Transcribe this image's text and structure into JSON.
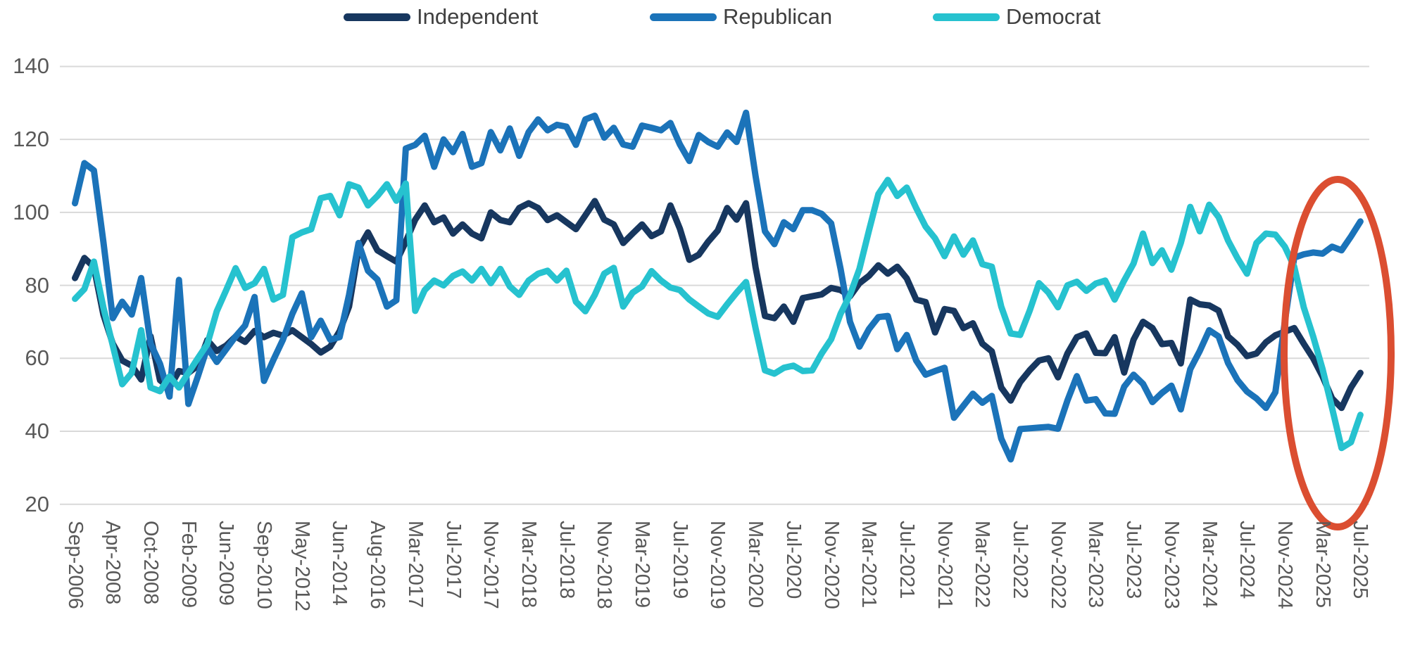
{
  "chart_data": {
    "type": "line",
    "title": "",
    "xlabel": "",
    "ylabel": "",
    "ylim": [
      20,
      140
    ],
    "yticks": [
      140,
      120,
      100,
      80,
      60,
      40,
      20
    ],
    "grid": "horizontal",
    "legend_position": "top",
    "x_tick_labels": [
      "Sep-2006",
      "Apr-2008",
      "Oct-2008",
      "Feb-2009",
      "Jun-2009",
      "Sep-2010",
      "May-2012",
      "Jun-2014",
      "Aug-2016",
      "Mar-2017",
      "Jul-2017",
      "Nov-2017",
      "Mar-2018",
      "Jul-2018",
      "Nov-2018",
      "Mar-2019",
      "Jul-2019",
      "Nov-2019",
      "Mar-2020",
      "Jul-2020",
      "Nov-2020",
      "Mar-2021",
      "Jul-2021",
      "Nov-2021",
      "Mar-2022",
      "Jul-2022",
      "Nov-2022",
      "Mar-2023",
      "Jul-2023",
      "Nov-2023",
      "Mar-2024",
      "Jul-2024",
      "Nov-2024",
      "Mar-2025",
      "Jul-2025"
    ],
    "label_every_n_points": 4,
    "series": [
      {
        "name": "Independent",
        "color": "#17375F",
        "values": [
          82,
          87.5,
          85,
          72,
          64,
          59.4,
          58,
          54.2,
          66,
          54,
          52,
          56.5,
          56,
          58,
          65,
          62,
          63.5,
          66,
          64.5,
          67.5,
          65.8,
          67,
          66.2,
          67.7,
          65.8,
          63.9,
          61.6,
          63.2,
          67.4,
          74.2,
          90,
          94.5,
          89.6,
          88,
          86.5,
          92,
          98,
          101.9,
          97.3,
          98.6,
          94.2,
          96.7,
          94.2,
          92.9,
          100,
          97.9,
          97.3,
          101.2,
          102.5,
          101.2,
          97.9,
          99.2,
          97.3,
          95.4,
          99.2,
          103.1,
          98,
          96.7,
          91.6,
          94.2,
          96.7,
          93.5,
          94.8,
          101.9,
          95.5,
          87,
          88.4,
          92,
          95,
          101.2,
          98,
          102.5,
          85,
          71.6,
          71,
          74.2,
          70,
          76.5,
          77,
          77.5,
          79.3,
          78.7,
          77,
          80.6,
          82.6,
          85.5,
          83.2,
          85.1,
          81.9,
          76.1,
          75.4,
          67.1,
          73.5,
          73,
          68.3,
          69.6,
          64,
          61.9,
          52,
          48.4,
          53.5,
          56.7,
          59.4,
          60,
          54.8,
          61.3,
          65.8,
          66.8,
          61.5,
          61.4,
          65.8,
          56.1,
          65.1,
          70,
          68.3,
          63.9,
          64.2,
          58.6,
          76.1,
          74.8,
          74.5,
          73.1,
          66,
          63.7,
          60.6,
          61.3,
          64.4,
          66.3,
          67.3,
          68.3,
          64,
          60,
          55,
          49,
          46.4,
          52,
          56
        ]
      },
      {
        "name": "Republican",
        "color": "#1B73B9",
        "values": [
          102.5,
          113.5,
          111.5,
          92,
          71,
          75.5,
          72,
          82,
          64,
          58.5,
          49.5,
          81.5,
          47.5,
          55,
          63,
          59,
          62.5,
          66,
          69,
          76.8,
          53.8,
          59.6,
          65.1,
          72.2,
          77.8,
          65.8,
          70.3,
          65.1,
          65.8,
          77.4,
          91.6,
          84,
          81.6,
          74.2,
          75.9,
          117.5,
          118.5,
          121,
          112.5,
          120,
          116.5,
          121.5,
          112.5,
          113.5,
          122,
          117,
          123,
          115.5,
          122,
          125.5,
          122.5,
          124,
          123.5,
          118.5,
          125.5,
          126.5,
          120.5,
          123.2,
          118.6,
          118,
          123.8,
          123.2,
          122.5,
          124.5,
          118.6,
          114.1,
          121.2,
          119.3,
          118,
          121.9,
          119.3,
          127.3,
          110,
          94.8,
          91.3,
          97.3,
          95.4,
          100.6,
          100.6,
          99.6,
          97,
          84.5,
          70,
          63.2,
          68,
          71.3,
          71.6,
          62.5,
          66.4,
          59.4,
          55.5,
          56.5,
          57.4,
          43.7,
          47,
          50.3,
          47.8,
          49.7,
          38,
          32.3,
          40.6,
          40.8,
          41,
          41.2,
          40.7,
          48.4,
          55.1,
          48.4,
          48.8,
          44.9,
          44.8,
          52.2,
          55.5,
          53,
          48,
          50.5,
          52.5,
          46,
          57,
          62,
          67.7,
          66,
          58.7,
          54,
          50.9,
          49,
          46.4,
          50.7,
          70,
          87.6,
          88.5,
          89,
          88.7,
          90.6,
          89.6,
          93.4,
          97.5
        ]
      },
      {
        "name": "Democrat",
        "color": "#26C2CF",
        "values": [
          76.3,
          79,
          86.5,
          74,
          63.5,
          52.9,
          56,
          67.7,
          52,
          51,
          55,
          52,
          56,
          60,
          63.9,
          72.9,
          78.7,
          84.7,
          79.3,
          80.6,
          84.5,
          76.1,
          77.4,
          93.2,
          94.5,
          95.4,
          103.9,
          104.5,
          99.2,
          107.7,
          106.8,
          101.9,
          104.5,
          107.7,
          103.2,
          107.9,
          73,
          78.7,
          81.3,
          80,
          82.6,
          83.8,
          81.3,
          84.5,
          80.6,
          84.5,
          79.7,
          77.4,
          81.3,
          83.2,
          84,
          81.3,
          84,
          75.5,
          72.9,
          77.4,
          83.2,
          84.8,
          74.2,
          78,
          79.7,
          83.9,
          81.3,
          79.4,
          78.7,
          76.1,
          74.2,
          72.3,
          71.4,
          74.8,
          78,
          80.9,
          68.3,
          56.7,
          55.8,
          57.4,
          58,
          56.5,
          56.7,
          61.3,
          65.2,
          72.2,
          77.4,
          84.5,
          95,
          105,
          108.9,
          104.5,
          106.8,
          101.2,
          96.1,
          92.9,
          88,
          93.4,
          88.4,
          92.3,
          85.8,
          85.1,
          74.2,
          66.8,
          66.4,
          73,
          80.6,
          78,
          74,
          80,
          81,
          78.5,
          80.5,
          81.3,
          76.1,
          81.3,
          86,
          94.2,
          86.1,
          89.6,
          84.3,
          91.6,
          101.5,
          94.8,
          102.1,
          98.7,
          92.3,
          87.4,
          83.2,
          91.6,
          94.2,
          93.9,
          90.6,
          85.1,
          74,
          66,
          57,
          46.4,
          35.4,
          37,
          44.5
        ]
      }
    ],
    "annotation": {
      "shape": "ellipse",
      "color": "#DB4E31",
      "meaning": "highlight of most recent months (circled region at right end of chart)"
    },
    "gridline_color": "#D9D9D9",
    "axis_text_color": "#595959",
    "legend_text_color": "#404040"
  }
}
